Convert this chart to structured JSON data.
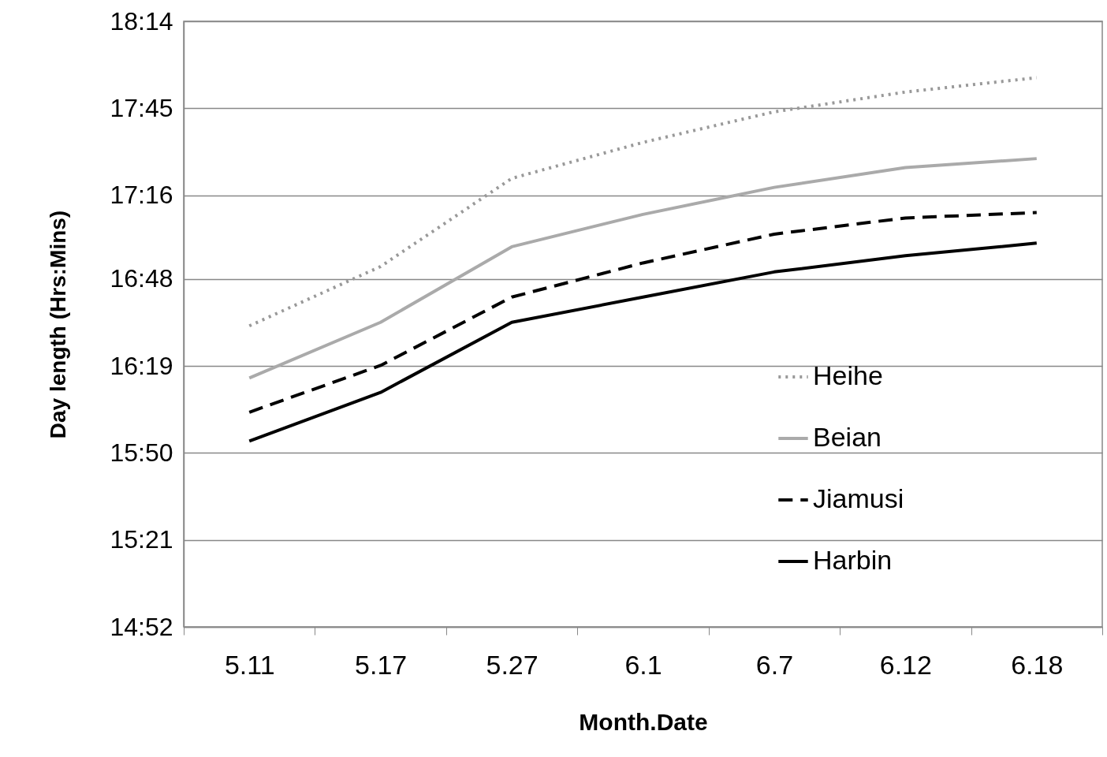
{
  "chart_data": {
    "type": "line",
    "xlabel": "Month.Date",
    "ylabel": "Day length (Hrs:Mins)",
    "categories": [
      "5.11",
      "5.17",
      "5.27",
      "6.1",
      "6.7",
      "6.12",
      "6.18"
    ],
    "series": [
      {
        "name": "Heihe",
        "color": "#999999",
        "line_style": "dotted",
        "values": [
          16.54,
          16.87,
          17.36,
          17.56,
          17.73,
          17.84,
          17.92
        ]
      },
      {
        "name": "Beian",
        "color": "#aaaaaa",
        "line_style": "solid",
        "values": [
          16.25,
          16.56,
          16.98,
          17.16,
          17.31,
          17.42,
          17.47
        ]
      },
      {
        "name": "Jiamusi",
        "color": "#000000",
        "line_style": "dashed",
        "values": [
          16.06,
          16.32,
          16.7,
          16.89,
          17.05,
          17.14,
          17.17
        ]
      },
      {
        "name": "Harbin",
        "color": "#000000",
        "line_style": "solid",
        "values": [
          15.9,
          16.17,
          16.56,
          16.7,
          16.84,
          16.93,
          17.0
        ]
      }
    ],
    "ylim": [
      14.8667,
      18.2333
    ],
    "yticks": [
      {
        "value": 14.8667,
        "label": "14:52"
      },
      {
        "value": 15.35,
        "label": "15:21"
      },
      {
        "value": 15.8333,
        "label": "15:50"
      },
      {
        "value": 16.3167,
        "label": "16:19"
      },
      {
        "value": 16.8,
        "label": "16:48"
      },
      {
        "value": 17.2667,
        "label": "17:16"
      },
      {
        "value": 17.75,
        "label": "17:45"
      },
      {
        "value": 18.2333,
        "label": "18:14"
      }
    ],
    "grid": "y",
    "legend": "center right",
    "marker": "none"
  }
}
